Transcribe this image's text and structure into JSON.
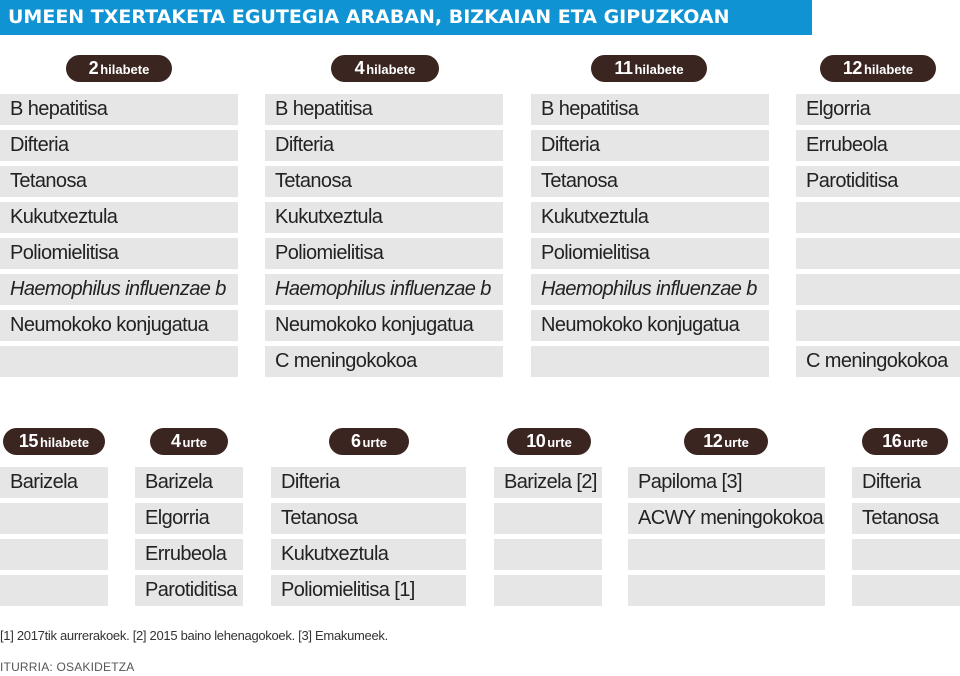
{
  "title": "UMEEN TXERTAKETA EGUTEGIA ARABAN, BIZKAIAN ETA GIPUZKOAN",
  "groups": [
    {
      "age": "2",
      "unit": "hilabete",
      "items": [
        {
          "label": "B hepatitisa"
        },
        {
          "label": "Difteria"
        },
        {
          "label": "Tetanosa"
        },
        {
          "label": "Kukutxeztula"
        },
        {
          "label": "Poliomielitisa"
        },
        {
          "label": "Haemophilus influenzae b",
          "italic": true
        },
        {
          "label": "Neumokoko konjugatua"
        },
        {
          "label": ""
        }
      ]
    },
    {
      "age": "4",
      "unit": "hilabete",
      "items": [
        {
          "label": "B hepatitisa"
        },
        {
          "label": "Difteria"
        },
        {
          "label": "Tetanosa"
        },
        {
          "label": "Kukutxeztula"
        },
        {
          "label": "Poliomielitisa"
        },
        {
          "label": "Haemophilus influenzae b",
          "italic": true
        },
        {
          "label": "Neumokoko konjugatua"
        },
        {
          "label": "C meningokokoa"
        }
      ]
    },
    {
      "age": "11",
      "unit": "hilabete",
      "items": [
        {
          "label": "B hepatitisa"
        },
        {
          "label": "Difteria"
        },
        {
          "label": "Tetanosa"
        },
        {
          "label": "Kukutxeztula"
        },
        {
          "label": "Poliomielitisa"
        },
        {
          "label": "Haemophilus influenzae b",
          "italic": true
        },
        {
          "label": "Neumokoko konjugatua"
        },
        {
          "label": ""
        }
      ]
    },
    {
      "age": "12",
      "unit": "hilabete",
      "items": [
        {
          "label": "Elgorria"
        },
        {
          "label": "Errubeola"
        },
        {
          "label": "Parotiditisa"
        },
        {
          "label": ""
        },
        {
          "label": ""
        },
        {
          "label": ""
        },
        {
          "label": ""
        },
        {
          "label": "C meningokokoa"
        }
      ]
    },
    {
      "age": "15",
      "unit": "hilabete",
      "items": [
        {
          "label": "Barizela"
        },
        {
          "label": ""
        },
        {
          "label": ""
        },
        {
          "label": ""
        }
      ]
    },
    {
      "age": "4",
      "unit": "urte",
      "items": [
        {
          "label": "Barizela"
        },
        {
          "label": "Elgorria"
        },
        {
          "label": "Errubeola"
        },
        {
          "label": "Parotiditisa"
        }
      ]
    },
    {
      "age": "6",
      "unit": "urte",
      "items": [
        {
          "label": "Difteria"
        },
        {
          "label": "Tetanosa"
        },
        {
          "label": "Kukutxeztula"
        },
        {
          "label": "Poliomielitisa [1]"
        }
      ]
    },
    {
      "age": "10",
      "unit": "urte",
      "items": [
        {
          "label": "Barizela [2]"
        },
        {
          "label": ""
        },
        {
          "label": ""
        },
        {
          "label": ""
        }
      ]
    },
    {
      "age": "12",
      "unit": "urte",
      "items": [
        {
          "label": "Papiloma [3]"
        },
        {
          "label": "ACWY meningokokoa"
        },
        {
          "label": ""
        },
        {
          "label": ""
        }
      ]
    },
    {
      "age": "16",
      "unit": "urte",
      "items": [
        {
          "label": "Difteria"
        },
        {
          "label": "Tetanosa"
        },
        {
          "label": ""
        },
        {
          "label": ""
        }
      ]
    }
  ],
  "footnote": "[1] 2017tik aurrerakoek. [2] 2015 baino lehenagokoek. [3] Emakumeek.",
  "source": "ITURRIA: OSAKIDETZA",
  "colors": {
    "title_bg": "#0f93d2",
    "pill_bg": "#3a2520",
    "cell_bg": "#e6e6e6"
  }
}
